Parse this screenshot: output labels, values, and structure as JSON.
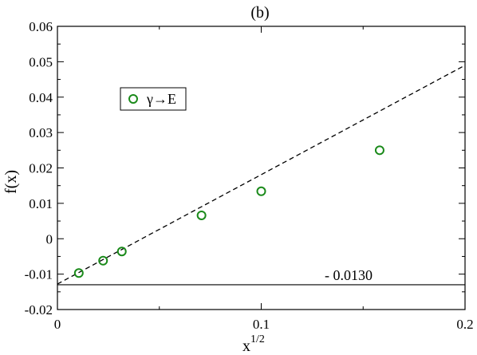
{
  "chart_data": {
    "type": "scatter",
    "title": "(b)",
    "xlabel": "x",
    "xlabel_sup": "1/2",
    "ylabel": "f(x)",
    "xlim": [
      0,
      0.2
    ],
    "ylim": [
      -0.02,
      0.06
    ],
    "x_ticks": [
      0,
      0.1,
      0.2
    ],
    "x_tick_labels": [
      "0",
      "0.1",
      "0.2"
    ],
    "y_ticks": [
      -0.02,
      -0.01,
      0,
      0.01,
      0.02,
      0.03,
      0.04,
      0.05,
      0.06
    ],
    "y_tick_labels": [
      "-0.02",
      "-0.01",
      "0",
      "0.01",
      "0.02",
      "0.03",
      "0.04",
      "0.05",
      "0.06"
    ],
    "grid": false,
    "legend_position": "upper-left",
    "series": [
      {
        "name": "γ→E",
        "marker": "open-circle",
        "color": "#1a8a1a",
        "x": [
          0.0105,
          0.0224,
          0.0316,
          0.0707,
          0.1,
          0.1581
        ],
        "y": [
          -0.0097,
          -0.0062,
          -0.0036,
          0.0066,
          0.0134,
          0.025
        ]
      }
    ],
    "fit_line": {
      "style": "dashed",
      "color": "#000000",
      "x": [
        0,
        0.2
      ],
      "y": [
        -0.0128,
        0.049
      ]
    },
    "reference_line": {
      "style": "solid",
      "color": "#000000",
      "y": -0.013,
      "label": "- 0.0130"
    }
  }
}
